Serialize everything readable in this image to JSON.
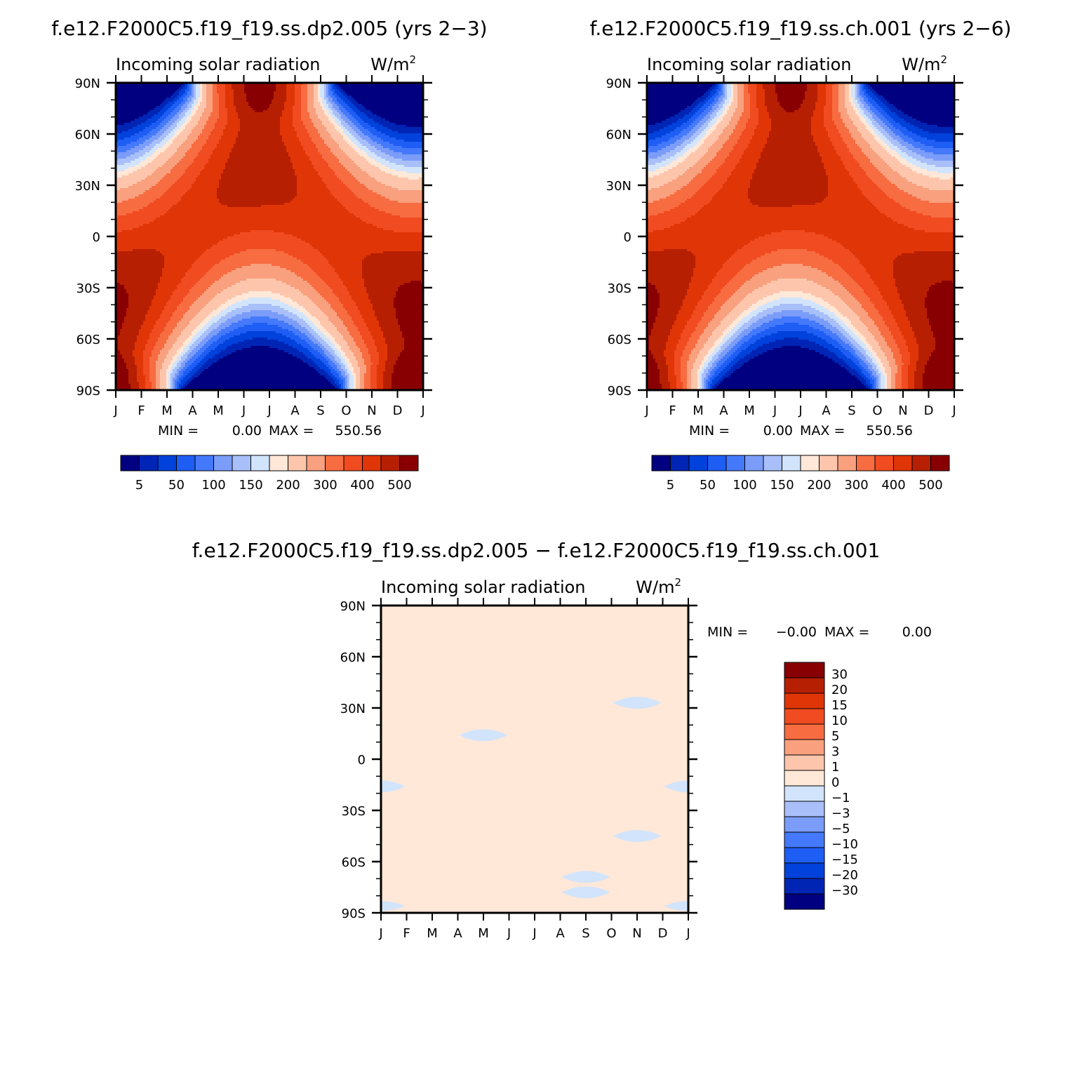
{
  "chart_data": [
    {
      "type": "heatmap",
      "title": "f.e12.F2000C5.f19_f19.ss.dp2.005 (yrs 2−3)",
      "subtitle_left": "Incoming solar radiation",
      "subtitle_right": "W/m",
      "units_superscript": "2",
      "x_ticks": [
        "J",
        "F",
        "M",
        "A",
        "M",
        "J",
        "J",
        "A",
        "S",
        "O",
        "N",
        "D",
        "J"
      ],
      "y_ticks": [
        "90N",
        "60N",
        "30N",
        "0",
        "30S",
        "60S",
        "90S"
      ],
      "ylim": [
        -90,
        90
      ],
      "field": "insolation",
      "stats_min_label": "MIN =",
      "stats_min": "0.00",
      "stats_max_label": "MAX =",
      "stats_max": "550.56",
      "colorbar": {
        "orientation": "horizontal",
        "levels": [
          5,
          25,
          50,
          75,
          100,
          125,
          150,
          175,
          200,
          250,
          300,
          350,
          400,
          450,
          500
        ],
        "labels": [
          "5",
          "50",
          "100",
          "150",
          "200",
          "300",
          "400",
          "500"
        ],
        "colors": [
          "#000080",
          "#0025b5",
          "#0042db",
          "#1e5ef5",
          "#4479fb",
          "#7b9cf8",
          "#a8bff9",
          "#d2e4fb",
          "#ffe8d8",
          "#fdc6ac",
          "#f9a07e",
          "#f76c41",
          "#f14b21",
          "#e03507",
          "#b71f02",
          "#890002"
        ]
      }
    },
    {
      "type": "heatmap",
      "title": "f.e12.F2000C5.f19_f19.ss.ch.001 (yrs 2−6)",
      "subtitle_left": "Incoming solar radiation",
      "subtitle_right": "W/m",
      "units_superscript": "2",
      "x_ticks": [
        "J",
        "F",
        "M",
        "A",
        "M",
        "J",
        "J",
        "A",
        "S",
        "O",
        "N",
        "D",
        "J"
      ],
      "y_ticks": [
        "90N",
        "60N",
        "30N",
        "0",
        "30S",
        "60S",
        "90S"
      ],
      "ylim": [
        -90,
        90
      ],
      "field": "insolation",
      "stats_min_label": "MIN =",
      "stats_min": "0.00",
      "stats_max_label": "MAX =",
      "stats_max": "550.56",
      "colorbar": {
        "orientation": "horizontal",
        "levels": [
          5,
          25,
          50,
          75,
          100,
          125,
          150,
          175,
          200,
          250,
          300,
          350,
          400,
          450,
          500
        ],
        "labels": [
          "5",
          "50",
          "100",
          "150",
          "200",
          "300",
          "400",
          "500"
        ],
        "colors": [
          "#000080",
          "#0025b5",
          "#0042db",
          "#1e5ef5",
          "#4479fb",
          "#7b9cf8",
          "#a8bff9",
          "#d2e4fb",
          "#ffe8d8",
          "#fdc6ac",
          "#f9a07e",
          "#f76c41",
          "#f14b21",
          "#e03507",
          "#b71f02",
          "#890002"
        ]
      }
    },
    {
      "type": "heatmap",
      "title": "f.e12.F2000C5.f19_f19.ss.dp2.005 − f.e12.F2000C5.f19_f19.ss.ch.001",
      "subtitle_left": "Incoming solar radiation",
      "subtitle_right": "W/m",
      "units_superscript": "2",
      "x_ticks": [
        "J",
        "F",
        "M",
        "A",
        "M",
        "J",
        "J",
        "A",
        "S",
        "O",
        "N",
        "D",
        "J"
      ],
      "y_ticks": [
        "90N",
        "60N",
        "30N",
        "0",
        "30S",
        "60S",
        "90S"
      ],
      "ylim": [
        -90,
        90
      ],
      "field": "difference",
      "background_color": "#ffe8d8",
      "blob_color": "#d2e4fb",
      "blobs": [
        {
          "month": 4.0,
          "lat": 14,
          "half_width_months": 0.95,
          "half_height_deg": 3.5
        },
        {
          "month": 10.0,
          "lat": 33,
          "half_width_months": 0.95,
          "half_height_deg": 3.5
        },
        {
          "month": 10.0,
          "lat": -45,
          "half_width_months": 0.95,
          "half_height_deg": 3.5
        },
        {
          "month": 8.0,
          "lat": -69,
          "half_width_months": 0.95,
          "half_height_deg": 3.5
        },
        {
          "month": 8.0,
          "lat": -78,
          "half_width_months": 0.95,
          "half_height_deg": 3.5
        },
        {
          "month": 0.0,
          "lat": -16,
          "half_width_months": 0.95,
          "half_height_deg": 3.5
        },
        {
          "month": 12.0,
          "lat": -16,
          "half_width_months": 0.95,
          "half_height_deg": 3.5
        },
        {
          "month": 0.0,
          "lat": -86,
          "half_width_months": 0.95,
          "half_height_deg": 3.0
        },
        {
          "month": 12.0,
          "lat": -86,
          "half_width_months": 0.95,
          "half_height_deg": 3.0
        }
      ],
      "stats_min_label": "MIN =",
      "stats_min": "−0.00",
      "stats_max_label": "MAX =",
      "stats_max": "0.00",
      "colorbar": {
        "orientation": "vertical",
        "labels": [
          "30",
          "20",
          "15",
          "10",
          "5",
          "3",
          "1",
          "0",
          "−1",
          "−3",
          "−5",
          "−10",
          "−15",
          "−20",
          "−30"
        ],
        "colors": [
          "#890002",
          "#b71f02",
          "#e03507",
          "#f14b21",
          "#f76c41",
          "#f9a07e",
          "#fdc6ac",
          "#ffe8d8",
          "#d2e4fb",
          "#a8bff9",
          "#7b9cf8",
          "#4479fb",
          "#1e5ef5",
          "#0042db",
          "#0025b5",
          "#000080"
        ]
      }
    }
  ]
}
